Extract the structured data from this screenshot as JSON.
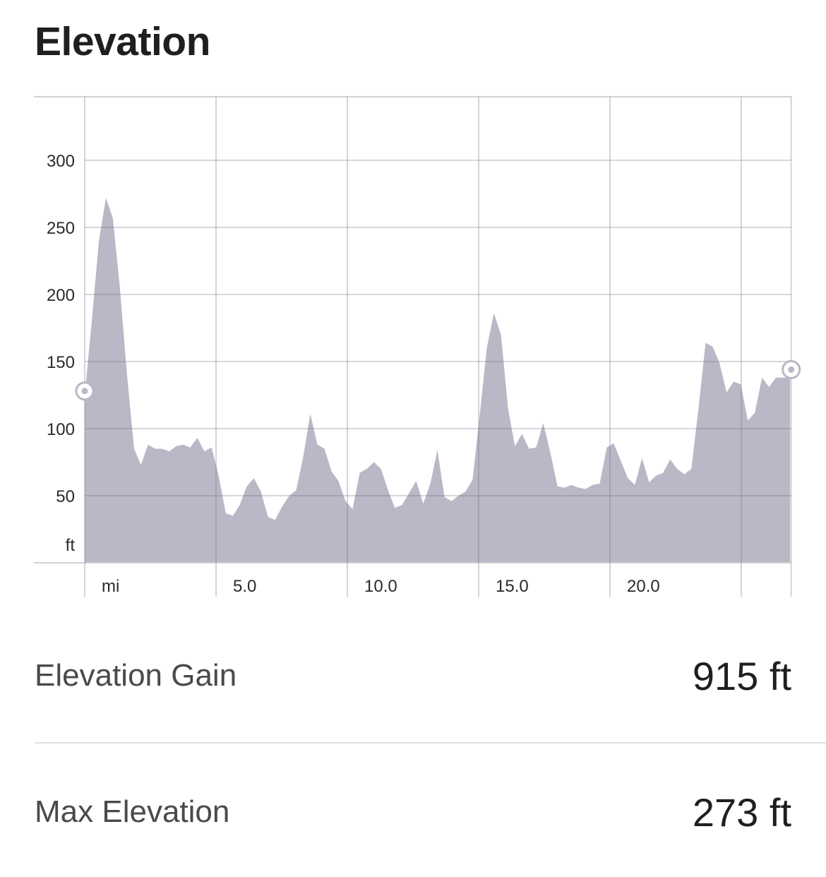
{
  "header": {
    "title": "Elevation"
  },
  "stats": {
    "gain_label": "Elevation Gain",
    "gain_value": "915 ft",
    "max_label": "Max Elevation",
    "max_value": "273 ft"
  },
  "colors": {
    "area_fill": "#b8b8c6",
    "grid": "#d2d2d4",
    "marker": "#ffffff",
    "marker_dot": "#b8b8c6"
  },
  "chart_data": {
    "type": "area",
    "xlabel": "mi",
    "ylabel": "ft",
    "xlim": [
      0,
      26.9
    ],
    "ylim": [
      0,
      348
    ],
    "x_ticks": [
      5.0,
      10.0,
      15.0,
      20.0
    ],
    "x_tick_labels": [
      "5.0",
      "10.0",
      "15.0",
      "20.0"
    ],
    "x_gridlines": [
      0,
      5,
      10,
      15,
      20,
      25,
      26.9
    ],
    "y_ticks": [
      50,
      100,
      150,
      200,
      250,
      300
    ],
    "y_tick_labels": [
      "50",
      "100",
      "150",
      "200",
      "250",
      "300"
    ],
    "grid": true,
    "series": [
      {
        "x": [
          0,
          0.27,
          0.54,
          0.81,
          1.07,
          1.34,
          1.61,
          1.88,
          2.14,
          2.41,
          2.68,
          2.95,
          3.22,
          3.49,
          3.75,
          4.02,
          4.29,
          4.56,
          4.83,
          5.1,
          5.37,
          5.64,
          5.9,
          6.17,
          6.44,
          6.71,
          6.98,
          7.25,
          7.52,
          7.79,
          8.05,
          8.32,
          8.59,
          8.86,
          9.13,
          9.4,
          9.66,
          9.93,
          10.2,
          10.47,
          10.74,
          11.01,
          11.28,
          11.55,
          11.81,
          12.08,
          12.35,
          12.62,
          12.89,
          13.16,
          13.43,
          13.7,
          13.97,
          14.23,
          14.5,
          14.77,
          15.04,
          15.31,
          15.58,
          15.85,
          16.12,
          16.38,
          16.65,
          16.92,
          17.19,
          17.46,
          17.73,
          18.0,
          18.27,
          18.53,
          18.8,
          19.07,
          19.34,
          19.61,
          19.88,
          20.14,
          20.41,
          20.68,
          20.95,
          21.22,
          21.49,
          21.76,
          22.02,
          22.29,
          22.56,
          22.83,
          23.1,
          23.37,
          23.64,
          23.91,
          24.17,
          24.44,
          24.71,
          24.98,
          25.25,
          25.52,
          25.79,
          26.06,
          26.32,
          26.59,
          26.86
        ],
        "y": [
          125,
          180,
          240,
          272,
          257,
          205,
          140,
          85,
          73,
          88,
          85,
          85,
          83,
          87,
          88,
          86,
          93,
          83,
          86,
          65,
          37,
          35,
          43,
          57,
          63,
          53,
          34,
          32,
          42,
          50,
          54,
          79,
          111,
          88,
          85,
          68,
          61,
          46,
          40,
          67,
          70,
          75,
          70,
          54,
          41,
          43,
          52,
          61,
          44,
          59,
          84,
          49,
          46,
          50,
          53,
          62,
          110,
          160,
          186,
          170,
          115,
          87,
          96,
          85,
          86,
          104,
          82,
          57,
          56,
          58,
          56,
          55,
          58,
          59,
          86,
          89,
          76,
          63,
          58,
          78,
          60,
          65,
          67,
          77,
          70,
          66,
          70,
          115,
          164,
          161,
          149,
          127,
          135,
          133,
          106,
          112,
          138,
          131,
          138,
          138,
          138
        ]
      }
    ],
    "start_marker": {
      "x": 0,
      "y": 128
    },
    "end_marker": {
      "x": 26.9,
      "y": 144
    }
  }
}
